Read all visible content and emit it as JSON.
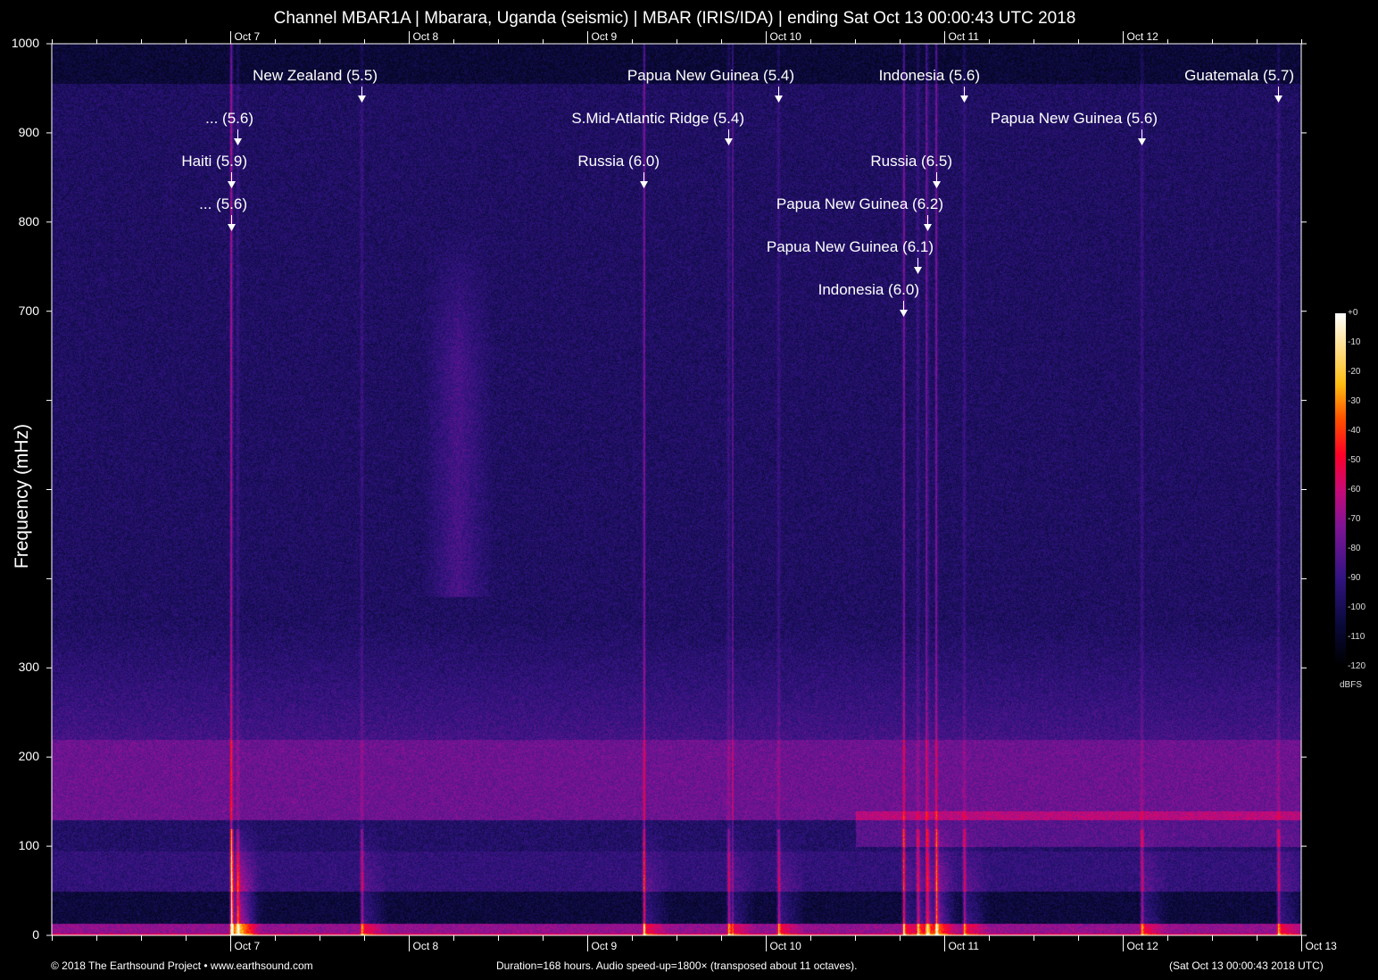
{
  "chart_data": {
    "type": "heatmap",
    "title": "Channel MBAR1A | Mbarara, Uganda (seismic) | MBAR (IRIS/IDA) | ending Sat Oct 13 00:00:43 UTC 2018",
    "ylabel": "Frequency (mHz)",
    "xlabel": "",
    "ylim": [
      0,
      1000
    ],
    "y_tick_labels": [
      "0",
      "100",
      "200",
      "300",
      "700",
      "800",
      "900",
      "1000"
    ],
    "x_tick_labels_bottom": [
      "Oct 7",
      "Oct 8",
      "Oct 9",
      "Oct 10",
      "Oct 11",
      "Oct 12",
      "Oct 13"
    ],
    "x_tick_labels_top": [
      "Oct 7",
      "Oct 8",
      "Oct 9",
      "Oct 10",
      "Oct 11",
      "Oct 12"
    ],
    "colorbar": {
      "label": "dBFS",
      "range": [
        -120,
        0
      ],
      "ticks": [
        "+0",
        "-10",
        "-20",
        "-30",
        "-40",
        "-50",
        "-60",
        "-70",
        "-80",
        "-90",
        "-100",
        "-110",
        "-120"
      ],
      "colormap": [
        "#000000",
        "#0a0a3c",
        "#321482",
        "#821496",
        "#c80a78",
        "#ff0028",
        "#ff5000",
        "#ffbe14",
        "#ffffff"
      ]
    },
    "annotations": [
      {
        "label": "New Zealand (5.5)"
      },
      {
        "label": "... (5.6)"
      },
      {
        "label": "Haiti (5.9)"
      },
      {
        "label": "... (5.6)"
      },
      {
        "label": "Papua New Guinea (5.4)"
      },
      {
        "label": "S.Mid-Atlantic Ridge (5.4)"
      },
      {
        "label": "Russia (6.0)"
      },
      {
        "label": "Indonesia (5.6)"
      },
      {
        "label": "Papua New Guinea (5.6)"
      },
      {
        "label": "Russia (6.5)"
      },
      {
        "label": "Papua New Guinea (6.2)"
      },
      {
        "label": "Papua New Guinea (6.1)"
      },
      {
        "label": "Indonesia (6.0)"
      },
      {
        "label": "Guatemala (5.7)"
      }
    ]
  },
  "footer": {
    "copyright": "© 2018 The Earthsound Project • www.earthsound.com",
    "info": "Duration=168 hours. Audio speed-up=1800× (transposed about 11 octaves).",
    "end_time": "(Sat Oct 13 00:00:43 2018 UTC)"
  }
}
